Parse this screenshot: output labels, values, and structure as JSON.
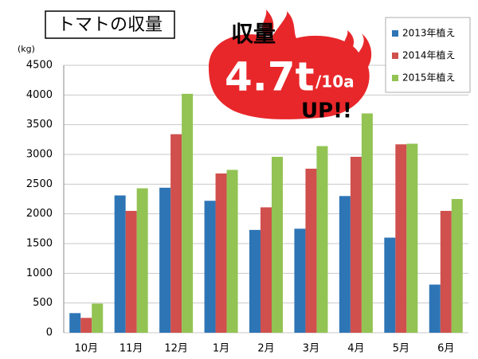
{
  "chart_data": {
    "type": "bar",
    "title": "トマトの収量",
    "y_label": "(kg)",
    "annotations": [
      "収量",
      "4.7t",
      "/10a",
      "UP!!"
    ],
    "categories": [
      "10月",
      "11月",
      "12月",
      "1月",
      "2月",
      "3月",
      "4月",
      "5月",
      "6月"
    ],
    "series": [
      {
        "name": "2013年植え",
        "color": "#2e75b6",
        "values": [
          330,
          2310,
          2440,
          2220,
          1730,
          1750,
          2300,
          1600,
          810
        ]
      },
      {
        "name": "2014年植え",
        "color": "#d0504d",
        "values": [
          250,
          2050,
          3340,
          2680,
          2110,
          2760,
          2960,
          3170,
          2050
        ]
      },
      {
        "name": "2015年植え",
        "color": "#92c353",
        "values": [
          490,
          2430,
          4020,
          2740,
          2960,
          3140,
          3690,
          3180,
          2250
        ]
      }
    ],
    "ylim": [
      0,
      4500
    ],
    "yticks": [
      0,
      500,
      1000,
      1500,
      2000,
      2500,
      3000,
      3500,
      4000,
      4500
    ],
    "grid": true
  }
}
